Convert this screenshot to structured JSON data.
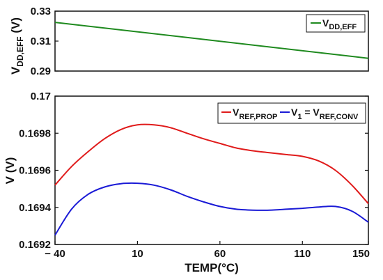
{
  "colors": {
    "green": "#1f8a1f",
    "red": "#e01b1b",
    "blue": "#1a1ad6",
    "brown": "#7a3b12"
  },
  "chart_data": [
    {
      "type": "line",
      "ylabel_main": "V",
      "ylabel_sub": "DD,EFF",
      "ylabel_unit": " (V)",
      "ylim": [
        0.29,
        0.33
      ],
      "yticks": [
        "0.29",
        "0.31",
        "0.33"
      ],
      "xlim": [
        -40,
        150
      ],
      "legend_position": "top-right",
      "series": [
        {
          "name_main": "V",
          "name_sub": "DD,EFF",
          "color": "#1f8a1f",
          "x": [
            -40,
            150
          ],
          "y": [
            0.3225,
            0.2985
          ]
        }
      ]
    },
    {
      "type": "line",
      "ylabel": "V (V)",
      "xlabel": "TEMP(°C)",
      "xlim": [
        -40,
        150
      ],
      "ylim": [
        0.1692,
        0.17
      ],
      "xticks": [
        "− 40",
        "10",
        "60",
        "110",
        "150"
      ],
      "xtick_values": [
        -40,
        10,
        60,
        110,
        150
      ],
      "yticks": [
        "0.1692",
        "0.1694",
        "0.1696",
        "0.1698",
        "0.17"
      ],
      "ytick_values": [
        0.1692,
        0.1694,
        0.1696,
        0.1698,
        0.17
      ],
      "legend_position": "top-right",
      "series": [
        {
          "name_main": "V",
          "name_sub": "REF,PROP",
          "color": "#e01b1b",
          "x": [
            -40,
            -30,
            -20,
            -10,
            0,
            10,
            20,
            30,
            40,
            50,
            60,
            70,
            80,
            90,
            100,
            110,
            120,
            130,
            140,
            150
          ],
          "y": [
            0.16952,
            0.16962,
            0.1697,
            0.16977,
            0.16982,
            0.169845,
            0.169845,
            0.16983,
            0.1698,
            0.16977,
            0.169745,
            0.16972,
            0.169705,
            0.169695,
            0.169685,
            0.169675,
            0.16965,
            0.1696,
            0.16952,
            0.16942
          ]
        },
        {
          "name_main": "V",
          "name_sub": "1",
          "name_tail_main": " = V",
          "name_tail_sub": "REF,CONV",
          "color": "#1a1ad6",
          "x": [
            -40,
            -30,
            -20,
            -10,
            0,
            10,
            20,
            30,
            40,
            50,
            60,
            70,
            80,
            90,
            100,
            110,
            120,
            130,
            140,
            150
          ],
          "y": [
            0.16925,
            0.16939,
            0.16947,
            0.16951,
            0.169528,
            0.16953,
            0.16952,
            0.169495,
            0.16946,
            0.16943,
            0.169405,
            0.16939,
            0.169385,
            0.169385,
            0.16939,
            0.169395,
            0.169402,
            0.169405,
            0.16938,
            0.16932
          ]
        }
      ]
    }
  ]
}
